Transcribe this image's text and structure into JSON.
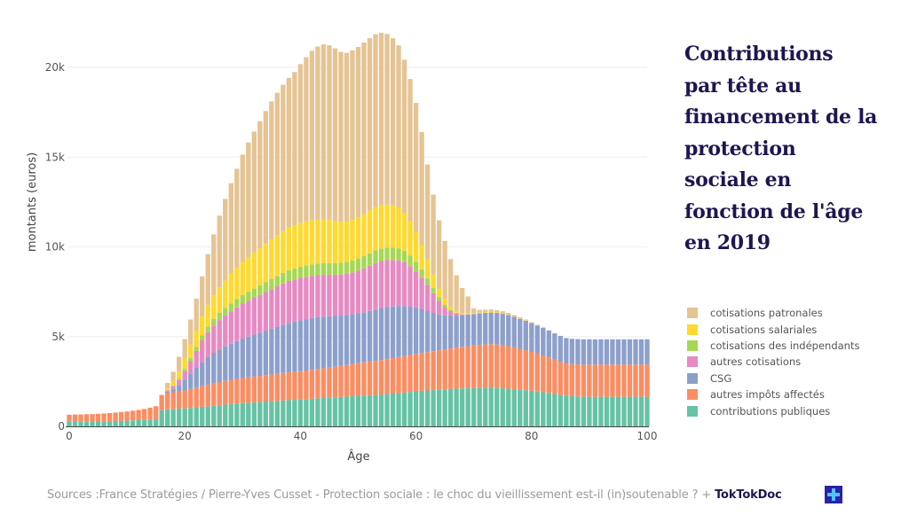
{
  "title_lines": [
    "Contributions",
    "par tête au",
    "financement de la",
    "protection",
    "sociale en",
    "fonction de l'âge",
    "en 2019"
  ],
  "footer": {
    "source": "Sources :France Stratégies / Pierre-Yves Cusset - Protection sociale : le choc du vieillissement est-il (in)soutenable ? + ",
    "brand": "TokTokDoc",
    "logo_icon": "medical-cross-icon"
  },
  "chart_data": {
    "type": "bar",
    "stacked": true,
    "title": "Contributions par tête au financement de la protection sociale en fonction de l'âge en 2019",
    "xlabel": "Âge",
    "ylabel": "montants (euros)",
    "xlim": [
      0,
      100
    ],
    "ylim": [
      0,
      20500
    ],
    "x_ticks": [
      0,
      20,
      40,
      60,
      80,
      100
    ],
    "x_tick_labels": [
      "0",
      "20",
      "40",
      "60",
      "80",
      "100"
    ],
    "y_ticks": [
      0,
      5000,
      10000,
      15000,
      20000
    ],
    "y_tick_labels": [
      "0",
      "5k",
      "10k",
      "15k",
      "20k"
    ],
    "grid": true,
    "legend_position": "right",
    "unit": "euros",
    "x": [
      0,
      1,
      2,
      3,
      4,
      5,
      6,
      7,
      8,
      9,
      10,
      11,
      12,
      13,
      14,
      15,
      16,
      17,
      18,
      19,
      20,
      21,
      22,
      23,
      24,
      25,
      26,
      27,
      28,
      29,
      30,
      31,
      32,
      33,
      34,
      35,
      36,
      37,
      38,
      39,
      40,
      41,
      42,
      43,
      44,
      45,
      46,
      47,
      48,
      49,
      50,
      51,
      52,
      53,
      54,
      55,
      56,
      57,
      58,
      59,
      60,
      61,
      62,
      63,
      64,
      65,
      66,
      67,
      68,
      69,
      70,
      71,
      72,
      73,
      74,
      75,
      76,
      77,
      78,
      79,
      80,
      81,
      82,
      83,
      84,
      85,
      86,
      87,
      88,
      89,
      90,
      91,
      92,
      93,
      94,
      95,
      96,
      97,
      98,
      99,
      100
    ],
    "series": [
      {
        "name": "contributions publiques",
        "color": "#66c2a5",
        "values": [
          250,
          250,
          255,
          260,
          265,
          270,
          280,
          290,
          300,
          310,
          320,
          330,
          345,
          360,
          380,
          400,
          900,
          950,
          970,
          990,
          1000,
          1030,
          1060,
          1090,
          1120,
          1150,
          1180,
          1210,
          1240,
          1270,
          1300,
          1320,
          1340,
          1360,
          1380,
          1400,
          1420,
          1440,
          1460,
          1480,
          1500,
          1520,
          1540,
          1560,
          1580,
          1600,
          1620,
          1640,
          1660,
          1680,
          1700,
          1720,
          1740,
          1760,
          1780,
          1800,
          1830,
          1860,
          1890,
          1920,
          1950,
          1980,
          2000,
          2020,
          2040,
          2060,
          2080,
          2100,
          2110,
          2120,
          2130,
          2140,
          2145,
          2150,
          2140,
          2120,
          2100,
          2070,
          2040,
          2010,
          1980,
          1940,
          1900,
          1860,
          1800,
          1750,
          1700,
          1680,
          1660,
          1650,
          1650,
          1650,
          1650,
          1650,
          1650,
          1650,
          1650,
          1650,
          1650,
          1650,
          1650
        ]
      },
      {
        "name": "autres impôts affectés",
        "color": "#fc8d62",
        "values": [
          400,
          410,
          410,
          415,
          420,
          430,
          440,
          450,
          470,
          490,
          510,
          540,
          570,
          610,
          660,
          720,
          850,
          900,
          930,
          960,
          1000,
          1050,
          1100,
          1150,
          1200,
          1250,
          1290,
          1320,
          1350,
          1370,
          1390,
          1410,
          1430,
          1450,
          1470,
          1490,
          1510,
          1530,
          1550,
          1560,
          1570,
          1590,
          1610,
          1630,
          1650,
          1670,
          1700,
          1730,
          1760,
          1790,
          1820,
          1850,
          1870,
          1890,
          1910,
          1940,
          1970,
          2000,
          2030,
          2050,
          2080,
          2110,
          2140,
          2170,
          2200,
          2230,
          2260,
          2290,
          2320,
          2350,
          2380,
          2400,
          2420,
          2430,
          2420,
          2400,
          2370,
          2330,
          2280,
          2230,
          2170,
          2110,
          2050,
          1980,
          1910,
          1850,
          1800,
          1790,
          1790,
          1790,
          1790,
          1790,
          1790,
          1790,
          1790,
          1790,
          1790,
          1790,
          1790,
          1790,
          1790
        ]
      },
      {
        "name": "CSG",
        "color": "#8da0cb",
        "values": [
          0,
          0,
          0,
          0,
          0,
          0,
          0,
          0,
          0,
          0,
          0,
          0,
          0,
          0,
          0,
          0,
          0,
          80,
          180,
          350,
          600,
          850,
          1100,
          1350,
          1550,
          1700,
          1820,
          1920,
          2020,
          2110,
          2200,
          2270,
          2340,
          2410,
          2480,
          2550,
          2620,
          2690,
          2760,
          2800,
          2840,
          2860,
          2880,
          2890,
          2880,
          2860,
          2830,
          2800,
          2790,
          2780,
          2780,
          2790,
          2820,
          2860,
          2900,
          2900,
          2880,
          2850,
          2780,
          2700,
          2600,
          2450,
          2280,
          2130,
          2000,
          1900,
          1830,
          1780,
          1760,
          1750,
          1750,
          1750,
          1755,
          1760,
          1760,
          1750,
          1730,
          1700,
          1670,
          1640,
          1600,
          1570,
          1540,
          1500,
          1470,
          1440,
          1420,
          1410,
          1410,
          1410,
          1410,
          1410,
          1410,
          1410,
          1410,
          1410,
          1410,
          1410,
          1410,
          1410,
          1410
        ]
      },
      {
        "name": "autres cotisations",
        "color": "#e78ac3",
        "values": [
          0,
          0,
          0,
          0,
          0,
          0,
          0,
          0,
          0,
          0,
          0,
          0,
          0,
          0,
          0,
          0,
          0,
          70,
          150,
          280,
          480,
          700,
          950,
          1200,
          1380,
          1520,
          1630,
          1720,
          1800,
          1880,
          1950,
          2000,
          2050,
          2100,
          2150,
          2200,
          2250,
          2300,
          2330,
          2350,
          2360,
          2360,
          2350,
          2340,
          2330,
          2320,
          2300,
          2290,
          2300,
          2330,
          2380,
          2440,
          2520,
          2590,
          2620,
          2620,
          2590,
          2540,
          2450,
          2250,
          2000,
          1750,
          1450,
          1100,
          750,
          450,
          250,
          120,
          50,
          20,
          0,
          0,
          0,
          0,
          0,
          0,
          0,
          0,
          0,
          0,
          0,
          0,
          0,
          0,
          0,
          0,
          0,
          0,
          0,
          0,
          0,
          0,
          0,
          0,
          0,
          0,
          0,
          0,
          0,
          0,
          0
        ]
      },
      {
        "name": "cotisations des indépendants",
        "color": "#a6d854",
        "values": [
          0,
          0,
          0,
          0,
          0,
          0,
          0,
          0,
          0,
          0,
          0,
          0,
          0,
          0,
          0,
          0,
          0,
          0,
          40,
          80,
          120,
          170,
          220,
          270,
          320,
          370,
          400,
          420,
          440,
          460,
          480,
          500,
          515,
          530,
          545,
          560,
          575,
          590,
          600,
          610,
          620,
          630,
          640,
          650,
          650,
          650,
          650,
          650,
          650,
          660,
          670,
          680,
          690,
          700,
          700,
          700,
          690,
          670,
          640,
          600,
          540,
          460,
          370,
          290,
          210,
          140,
          80,
          40,
          20,
          10,
          0,
          0,
          0,
          0,
          0,
          0,
          0,
          0,
          0,
          0,
          0,
          0,
          0,
          0,
          0,
          0,
          0,
          0,
          0,
          0,
          0,
          0,
          0,
          0,
          0,
          0,
          0,
          0,
          0,
          0,
          0
        ]
      },
      {
        "name": "cotisations salariales",
        "color": "#ffd92f",
        "values": [
          0,
          0,
          0,
          0,
          0,
          0,
          0,
          0,
          0,
          0,
          0,
          0,
          0,
          0,
          0,
          0,
          0,
          120,
          250,
          400,
          580,
          750,
          900,
          1050,
          1180,
          1300,
          1420,
          1530,
          1640,
          1740,
          1840,
          1920,
          2000,
          2070,
          2140,
          2200,
          2260,
          2320,
          2370,
          2410,
          2440,
          2460,
          2470,
          2460,
          2440,
          2400,
          2340,
          2280,
          2250,
          2260,
          2290,
          2340,
          2390,
          2420,
          2420,
          2400,
          2340,
          2250,
          2110,
          1900,
          1650,
          1350,
          1050,
          750,
          480,
          300,
          170,
          90,
          50,
          40,
          40,
          40,
          40,
          40,
          35,
          30,
          25,
          20,
          15,
          10,
          5,
          0,
          0,
          0,
          0,
          0,
          0,
          0,
          0,
          0,
          0,
          0,
          0,
          0,
          0,
          0,
          0,
          0,
          0,
          0,
          0
        ]
      },
      {
        "name": "cotisations patronales",
        "color": "#e5c494",
        "values": [
          0,
          0,
          0,
          0,
          0,
          0,
          0,
          0,
          0,
          0,
          0,
          0,
          0,
          0,
          0,
          0,
          0,
          300,
          520,
          820,
          1080,
          1400,
          1780,
          2250,
          2850,
          3410,
          4000,
          4550,
          5060,
          5520,
          5980,
          6400,
          6750,
          7080,
          7400,
          7700,
          7950,
          8160,
          8340,
          8530,
          8850,
          9150,
          9430,
          9630,
          9750,
          9730,
          9620,
          9470,
          9400,
          9450,
          9500,
          9560,
          9600,
          9630,
          9600,
          9500,
          9320,
          9050,
          8530,
          7930,
          7200,
          6300,
          5300,
          4450,
          3800,
          3250,
          2650,
          2000,
          1400,
          950,
          280,
          160,
          140,
          130,
          120,
          110,
          90,
          80,
          70,
          60,
          50,
          40,
          30,
          20,
          0,
          0,
          0,
          0,
          0,
          0,
          0,
          0,
          0,
          0,
          0,
          0,
          0,
          0,
          0,
          0,
          0
        ]
      }
    ]
  }
}
